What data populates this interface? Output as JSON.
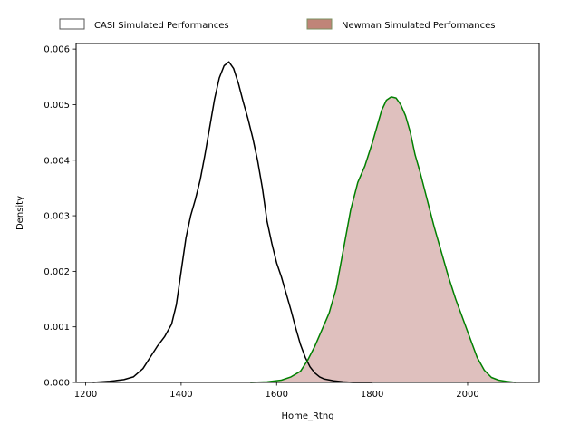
{
  "chart_data": {
    "type": "area",
    "title": "",
    "xlabel": "Home_Rtng",
    "ylabel": "Density",
    "xlim": [
      1180,
      2150
    ],
    "ylim": [
      0,
      0.0061
    ],
    "xticks": [
      1200,
      1400,
      1600,
      1800,
      2000
    ],
    "xtick_labels": [
      "1200",
      "1400",
      "1600",
      "1800",
      "2000"
    ],
    "yticks": [
      0,
      0.001,
      0.002,
      0.003,
      0.004,
      0.005,
      0.006
    ],
    "ytick_labels": [
      "0.000",
      "0.001",
      "0.002",
      "0.003",
      "0.004",
      "0.005",
      "0.006"
    ],
    "grid": false,
    "legend_position": "top",
    "series": [
      {
        "name": "CASI Simulated Performances",
        "line_color": "#000000",
        "fill": "none",
        "legend_patch_face": "#ffffff",
        "legend_patch_edge": "#555555",
        "x": [
          1215,
          1250,
          1280,
          1300,
          1320,
          1335,
          1350,
          1365,
          1380,
          1390,
          1400,
          1410,
          1420,
          1430,
          1440,
          1450,
          1460,
          1470,
          1480,
          1490,
          1500,
          1510,
          1520,
          1530,
          1540,
          1550,
          1560,
          1570,
          1580,
          1590,
          1600,
          1610,
          1620,
          1630,
          1640,
          1650,
          1660,
          1670,
          1680,
          1690,
          1700,
          1720,
          1740,
          1760,
          1780,
          1800
        ],
        "y": [
          0.0,
          2e-05,
          5e-05,
          0.0001,
          0.00025,
          0.00045,
          0.00065,
          0.00082,
          0.00105,
          0.0014,
          0.002,
          0.0026,
          0.003,
          0.0033,
          0.00365,
          0.0041,
          0.0046,
          0.0051,
          0.00548,
          0.0057,
          0.00577,
          0.00565,
          0.00538,
          0.00505,
          0.00475,
          0.0044,
          0.004,
          0.0035,
          0.0029,
          0.0025,
          0.00215,
          0.0019,
          0.0016,
          0.0013,
          0.00098,
          0.00068,
          0.00045,
          0.00028,
          0.00017,
          0.0001,
          6e-05,
          3e-05,
          1e-05,
          0.0,
          0.0,
          0.0
        ]
      },
      {
        "name": "Newman Simulated Performances",
        "line_color": "#008000",
        "fill": "#dfc0be",
        "legend_patch_face": "#c08478",
        "legend_patch_edge": "#7a9060",
        "x": [
          1545,
          1580,
          1610,
          1630,
          1650,
          1665,
          1680,
          1695,
          1710,
          1725,
          1740,
          1755,
          1770,
          1785,
          1800,
          1810,
          1820,
          1830,
          1840,
          1850,
          1860,
          1870,
          1880,
          1890,
          1900,
          1915,
          1930,
          1945,
          1960,
          1975,
          1990,
          2005,
          2020,
          2035,
          2050,
          2065,
          2080,
          2100
        ],
        "y": [
          0.0,
          1e-05,
          4e-05,
          0.0001,
          0.0002,
          0.0004,
          0.00065,
          0.00095,
          0.00125,
          0.0017,
          0.0024,
          0.0031,
          0.0036,
          0.0039,
          0.0043,
          0.0046,
          0.0049,
          0.00508,
          0.00514,
          0.00512,
          0.005,
          0.0048,
          0.0045,
          0.0041,
          0.0038,
          0.0033,
          0.0028,
          0.00235,
          0.0019,
          0.0015,
          0.00115,
          0.0008,
          0.00045,
          0.00022,
          9e-05,
          4e-05,
          2e-05,
          0.0
        ]
      }
    ]
  }
}
